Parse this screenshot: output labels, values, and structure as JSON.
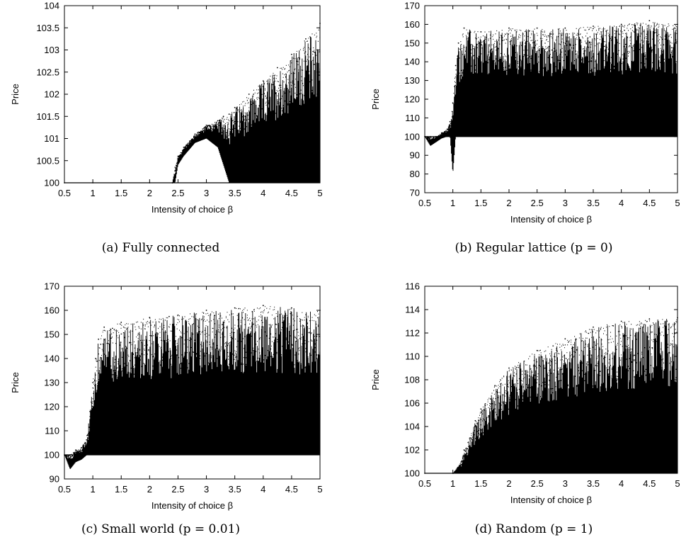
{
  "chart_data": [
    {
      "type": "scatter",
      "panel": "a",
      "caption": "(a) Fully connected",
      "xlabel": "Intensity of choice β",
      "ylabel": "Price",
      "xlim": [
        0.5,
        5
      ],
      "ylim": [
        100,
        104
      ],
      "xticks": [
        0.5,
        1,
        1.5,
        2,
        2.5,
        3,
        3.5,
        4,
        4.5,
        5
      ],
      "xtick_labels": [
        "0.5",
        "1",
        "1.5",
        "2",
        "2.5",
        "3",
        "3.5",
        "4",
        "4.5",
        "5"
      ],
      "yticks": [
        100,
        100.5,
        101,
        101.5,
        102,
        102.5,
        103,
        103.5,
        104
      ],
      "ytick_labels": [
        "100",
        "100.5",
        "101",
        "101.5",
        "102",
        "102.5",
        "103",
        "103.5",
        "104"
      ],
      "x": [
        0.5,
        1.0,
        1.5,
        2.0,
        2.4,
        2.45,
        2.5,
        2.6,
        2.8,
        3.0,
        3.2,
        3.3,
        3.4,
        3.5,
        3.75,
        4.0,
        4.25,
        4.5,
        4.75,
        5.0
      ],
      "y_min": [
        100,
        100,
        100,
        100,
        100,
        100,
        100.4,
        100.6,
        100.9,
        101.0,
        100.8,
        100.4,
        100,
        100,
        100,
        100,
        100,
        100,
        100,
        100
      ],
      "y_max": [
        100,
        100,
        100,
        100,
        100,
        100.35,
        100.6,
        100.8,
        101.1,
        101.3,
        101.4,
        101.5,
        101.55,
        101.7,
        102.0,
        102.3,
        102.6,
        102.9,
        103.25,
        103.6
      ]
    },
    {
      "type": "scatter",
      "panel": "b",
      "caption": "(b) Regular lattice (p = 0)",
      "xlabel": "Intensity of choice β",
      "ylabel": "Price",
      "xlim": [
        0.5,
        5
      ],
      "ylim": [
        70,
        170
      ],
      "xticks": [
        0.5,
        1,
        1.5,
        2,
        2.5,
        3,
        3.5,
        4,
        4.5,
        5
      ],
      "xtick_labels": [
        "0.5",
        "1",
        "1.5",
        "2",
        "2.5",
        "3",
        "3.5",
        "4",
        "4.5",
        "5"
      ],
      "yticks": [
        70,
        80,
        90,
        100,
        110,
        120,
        130,
        140,
        150,
        160,
        170
      ],
      "ytick_labels": [
        "70",
        "80",
        "90",
        "100",
        "110",
        "120",
        "130",
        "140",
        "150",
        "160",
        "170"
      ],
      "x": [
        0.5,
        0.6,
        0.7,
        0.8,
        0.9,
        0.95,
        1.0,
        1.05,
        1.1,
        1.2,
        1.5,
        2.0,
        2.5,
        3.0,
        3.5,
        4.0,
        4.5,
        5.0
      ],
      "y_min": [
        100,
        95,
        97,
        99,
        100,
        100,
        80,
        100,
        100,
        100,
        100,
        100,
        100,
        100,
        100,
        100,
        100,
        100
      ],
      "y_max": [
        100,
        100,
        100,
        102,
        104,
        108,
        118,
        138,
        150,
        158,
        156,
        158,
        158,
        158,
        159,
        160,
        162,
        160
      ]
    },
    {
      "type": "scatter",
      "panel": "c",
      "caption": "(c) Small world (p = 0.01)",
      "xlabel": "Intensity of choice β",
      "ylabel": "Price",
      "xlim": [
        0.5,
        5
      ],
      "ylim": [
        90,
        170
      ],
      "xticks": [
        0.5,
        1,
        1.5,
        2,
        2.5,
        3,
        3.5,
        4,
        4.5,
        5
      ],
      "xtick_labels": [
        "0.5",
        "1",
        "1.5",
        "2",
        "2.5",
        "3",
        "3.5",
        "4",
        "4.5",
        "5"
      ],
      "yticks": [
        90,
        100,
        110,
        120,
        130,
        140,
        150,
        160,
        170
      ],
      "ytick_labels": [
        "90",
        "100",
        "110",
        "120",
        "130",
        "140",
        "150",
        "160",
        "170"
      ],
      "x": [
        0.5,
        0.6,
        0.7,
        0.8,
        0.9,
        0.95,
        1.0,
        1.05,
        1.1,
        1.2,
        1.5,
        2.0,
        2.5,
        3.0,
        3.5,
        4.0,
        4.5,
        5.0
      ],
      "y_min": [
        100,
        94,
        97,
        98,
        100,
        100,
        100,
        100,
        100,
        100,
        100,
        100,
        100,
        100,
        100,
        100,
        100,
        100
      ],
      "y_max": [
        100,
        100,
        102,
        103,
        108,
        118,
        130,
        140,
        148,
        153,
        155,
        157,
        158,
        160,
        161,
        162,
        161,
        160
      ]
    },
    {
      "type": "scatter",
      "panel": "d",
      "caption": "(d) Random (p = 1)",
      "xlabel": "Intensity of choice β",
      "ylabel": "Price",
      "xlim": [
        0.5,
        5
      ],
      "ylim": [
        100,
        116
      ],
      "xticks": [
        0.5,
        1,
        1.5,
        2,
        2.5,
        3,
        3.5,
        4,
        4.5,
        5
      ],
      "xtick_labels": [
        "0.5",
        "1",
        "1.5",
        "2",
        "2.5",
        "3",
        "3.5",
        "4",
        "4.5",
        "5"
      ],
      "yticks": [
        100,
        102,
        104,
        106,
        108,
        110,
        112,
        114,
        116
      ],
      "ytick_labels": [
        "100",
        "102",
        "104",
        "106",
        "108",
        "110",
        "112",
        "114",
        "116"
      ],
      "x": [
        0.5,
        1.0,
        1.15,
        1.2,
        1.3,
        1.4,
        1.5,
        1.75,
        2.0,
        2.5,
        3.0,
        3.5,
        4.0,
        4.5,
        5.0
      ],
      "y_min": [
        100,
        100,
        100,
        100,
        100,
        100,
        100,
        100,
        100,
        100,
        100,
        100,
        100,
        100,
        100
      ],
      "y_max": [
        100,
        100,
        101,
        102,
        103,
        104.5,
        105.5,
        107.5,
        109,
        110.5,
        111.5,
        112.5,
        113,
        113.2,
        113.3
      ]
    }
  ]
}
